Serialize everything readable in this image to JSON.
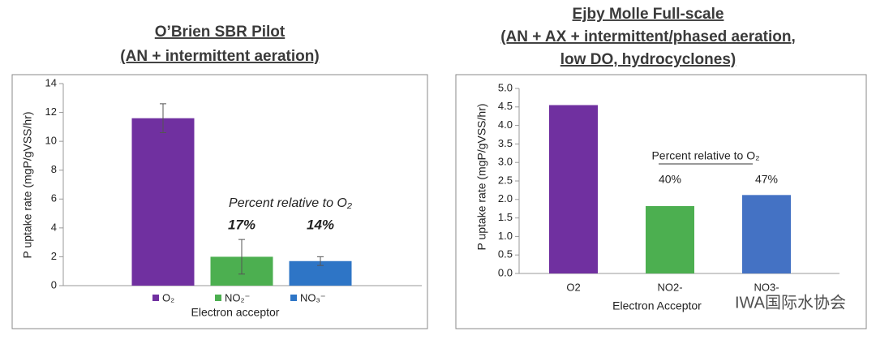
{
  "chart_data": [
    {
      "type": "bar",
      "title": [
        "O’Brien SBR Pilot",
        "(AN + intermittent aeration)"
      ],
      "y_label": "P uptake rate (mgP/gVSS/hr)",
      "x_label": "Electron acceptor",
      "categories": [
        "O₂",
        "NO₂⁻",
        "NO₃⁻"
      ],
      "colors": [
        "#7030a0",
        "#4caf50",
        "#2e75c6"
      ],
      "values": [
        11.6,
        2.0,
        1.7
      ],
      "errors": [
        1.0,
        1.2,
        0.3
      ],
      "annotation": "Percent relative to O₂",
      "percent_labels": [
        null,
        "17%",
        "14%"
      ],
      "ylim": [
        0,
        14
      ],
      "yticks": [
        0,
        2,
        4,
        6,
        8,
        10,
        12,
        14
      ],
      "legend": "bottom"
    },
    {
      "type": "bar",
      "title": [
        "Ejby Molle Full-scale",
        "(AN + AX + intermittent/phased aeration,",
        "low DO, hydrocyclones)"
      ],
      "y_label": "P uptake rate (mgP/gVSS/hr)",
      "x_label": "Electron Acceptor",
      "categories": [
        "O2",
        "NO2-",
        "NO3-"
      ],
      "colors": [
        "#7030a0",
        "#4caf50",
        "#4472c4"
      ],
      "values": [
        4.55,
        1.82,
        2.12
      ],
      "annotation": "Percent relative to O₂",
      "percent_labels": [
        null,
        "40%",
        "47%"
      ],
      "ylim": [
        0,
        5
      ],
      "yticks": [
        {
          "value": 0,
          "label": "0.0"
        },
        {
          "value": 0.5,
          "label": "0.5"
        },
        {
          "value": 1,
          "label": "1.0"
        },
        {
          "value": 1.5,
          "label": "1.5"
        },
        {
          "value": 2,
          "label": "2.0"
        },
        {
          "value": 2.5,
          "label": "2.5"
        },
        {
          "value": 3,
          "label": "3.0"
        },
        {
          "value": 3.5,
          "label": "3.5"
        },
        {
          "value": 4,
          "label": "4.0"
        },
        {
          "value": 4.5,
          "label": "4.5"
        },
        {
          "value": 5,
          "label": "5.0"
        }
      ],
      "watermark": "IWA国际水协会"
    }
  ]
}
